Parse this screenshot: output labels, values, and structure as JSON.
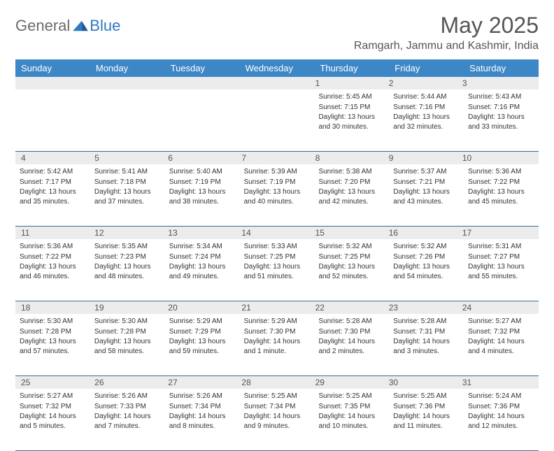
{
  "brand": {
    "part1": "General",
    "part2": "Blue"
  },
  "title": "May 2025",
  "location": "Ramgarh, Jammu and Kashmir, India",
  "colors": {
    "header_bg": "#3d87c7",
    "header_text": "#ffffff",
    "daynum_bg": "#ececec",
    "border": "#3d6a9a",
    "text": "#333333",
    "title": "#555555",
    "logo_gray": "#6b6b6b",
    "logo_blue": "#2f78c2"
  },
  "day_headers": [
    "Sunday",
    "Monday",
    "Tuesday",
    "Wednesday",
    "Thursday",
    "Friday",
    "Saturday"
  ],
  "weeks": [
    [
      {
        "n": "",
        "sunrise": "",
        "sunset": "",
        "daylight": ""
      },
      {
        "n": "",
        "sunrise": "",
        "sunset": "",
        "daylight": ""
      },
      {
        "n": "",
        "sunrise": "",
        "sunset": "",
        "daylight": ""
      },
      {
        "n": "",
        "sunrise": "",
        "sunset": "",
        "daylight": ""
      },
      {
        "n": "1",
        "sunrise": "Sunrise: 5:45 AM",
        "sunset": "Sunset: 7:15 PM",
        "daylight": "Daylight: 13 hours and 30 minutes."
      },
      {
        "n": "2",
        "sunrise": "Sunrise: 5:44 AM",
        "sunset": "Sunset: 7:16 PM",
        "daylight": "Daylight: 13 hours and 32 minutes."
      },
      {
        "n": "3",
        "sunrise": "Sunrise: 5:43 AM",
        "sunset": "Sunset: 7:16 PM",
        "daylight": "Daylight: 13 hours and 33 minutes."
      }
    ],
    [
      {
        "n": "4",
        "sunrise": "Sunrise: 5:42 AM",
        "sunset": "Sunset: 7:17 PM",
        "daylight": "Daylight: 13 hours and 35 minutes."
      },
      {
        "n": "5",
        "sunrise": "Sunrise: 5:41 AM",
        "sunset": "Sunset: 7:18 PM",
        "daylight": "Daylight: 13 hours and 37 minutes."
      },
      {
        "n": "6",
        "sunrise": "Sunrise: 5:40 AM",
        "sunset": "Sunset: 7:19 PM",
        "daylight": "Daylight: 13 hours and 38 minutes."
      },
      {
        "n": "7",
        "sunrise": "Sunrise: 5:39 AM",
        "sunset": "Sunset: 7:19 PM",
        "daylight": "Daylight: 13 hours and 40 minutes."
      },
      {
        "n": "8",
        "sunrise": "Sunrise: 5:38 AM",
        "sunset": "Sunset: 7:20 PM",
        "daylight": "Daylight: 13 hours and 42 minutes."
      },
      {
        "n": "9",
        "sunrise": "Sunrise: 5:37 AM",
        "sunset": "Sunset: 7:21 PM",
        "daylight": "Daylight: 13 hours and 43 minutes."
      },
      {
        "n": "10",
        "sunrise": "Sunrise: 5:36 AM",
        "sunset": "Sunset: 7:22 PM",
        "daylight": "Daylight: 13 hours and 45 minutes."
      }
    ],
    [
      {
        "n": "11",
        "sunrise": "Sunrise: 5:36 AM",
        "sunset": "Sunset: 7:22 PM",
        "daylight": "Daylight: 13 hours and 46 minutes."
      },
      {
        "n": "12",
        "sunrise": "Sunrise: 5:35 AM",
        "sunset": "Sunset: 7:23 PM",
        "daylight": "Daylight: 13 hours and 48 minutes."
      },
      {
        "n": "13",
        "sunrise": "Sunrise: 5:34 AM",
        "sunset": "Sunset: 7:24 PM",
        "daylight": "Daylight: 13 hours and 49 minutes."
      },
      {
        "n": "14",
        "sunrise": "Sunrise: 5:33 AM",
        "sunset": "Sunset: 7:25 PM",
        "daylight": "Daylight: 13 hours and 51 minutes."
      },
      {
        "n": "15",
        "sunrise": "Sunrise: 5:32 AM",
        "sunset": "Sunset: 7:25 PM",
        "daylight": "Daylight: 13 hours and 52 minutes."
      },
      {
        "n": "16",
        "sunrise": "Sunrise: 5:32 AM",
        "sunset": "Sunset: 7:26 PM",
        "daylight": "Daylight: 13 hours and 54 minutes."
      },
      {
        "n": "17",
        "sunrise": "Sunrise: 5:31 AM",
        "sunset": "Sunset: 7:27 PM",
        "daylight": "Daylight: 13 hours and 55 minutes."
      }
    ],
    [
      {
        "n": "18",
        "sunrise": "Sunrise: 5:30 AM",
        "sunset": "Sunset: 7:28 PM",
        "daylight": "Daylight: 13 hours and 57 minutes."
      },
      {
        "n": "19",
        "sunrise": "Sunrise: 5:30 AM",
        "sunset": "Sunset: 7:28 PM",
        "daylight": "Daylight: 13 hours and 58 minutes."
      },
      {
        "n": "20",
        "sunrise": "Sunrise: 5:29 AM",
        "sunset": "Sunset: 7:29 PM",
        "daylight": "Daylight: 13 hours and 59 minutes."
      },
      {
        "n": "21",
        "sunrise": "Sunrise: 5:29 AM",
        "sunset": "Sunset: 7:30 PM",
        "daylight": "Daylight: 14 hours and 1 minute."
      },
      {
        "n": "22",
        "sunrise": "Sunrise: 5:28 AM",
        "sunset": "Sunset: 7:30 PM",
        "daylight": "Daylight: 14 hours and 2 minutes."
      },
      {
        "n": "23",
        "sunrise": "Sunrise: 5:28 AM",
        "sunset": "Sunset: 7:31 PM",
        "daylight": "Daylight: 14 hours and 3 minutes."
      },
      {
        "n": "24",
        "sunrise": "Sunrise: 5:27 AM",
        "sunset": "Sunset: 7:32 PM",
        "daylight": "Daylight: 14 hours and 4 minutes."
      }
    ],
    [
      {
        "n": "25",
        "sunrise": "Sunrise: 5:27 AM",
        "sunset": "Sunset: 7:32 PM",
        "daylight": "Daylight: 14 hours and 5 minutes."
      },
      {
        "n": "26",
        "sunrise": "Sunrise: 5:26 AM",
        "sunset": "Sunset: 7:33 PM",
        "daylight": "Daylight: 14 hours and 7 minutes."
      },
      {
        "n": "27",
        "sunrise": "Sunrise: 5:26 AM",
        "sunset": "Sunset: 7:34 PM",
        "daylight": "Daylight: 14 hours and 8 minutes."
      },
      {
        "n": "28",
        "sunrise": "Sunrise: 5:25 AM",
        "sunset": "Sunset: 7:34 PM",
        "daylight": "Daylight: 14 hours and 9 minutes."
      },
      {
        "n": "29",
        "sunrise": "Sunrise: 5:25 AM",
        "sunset": "Sunset: 7:35 PM",
        "daylight": "Daylight: 14 hours and 10 minutes."
      },
      {
        "n": "30",
        "sunrise": "Sunrise: 5:25 AM",
        "sunset": "Sunset: 7:36 PM",
        "daylight": "Daylight: 14 hours and 11 minutes."
      },
      {
        "n": "31",
        "sunrise": "Sunrise: 5:24 AM",
        "sunset": "Sunset: 7:36 PM",
        "daylight": "Daylight: 14 hours and 12 minutes."
      }
    ]
  ]
}
